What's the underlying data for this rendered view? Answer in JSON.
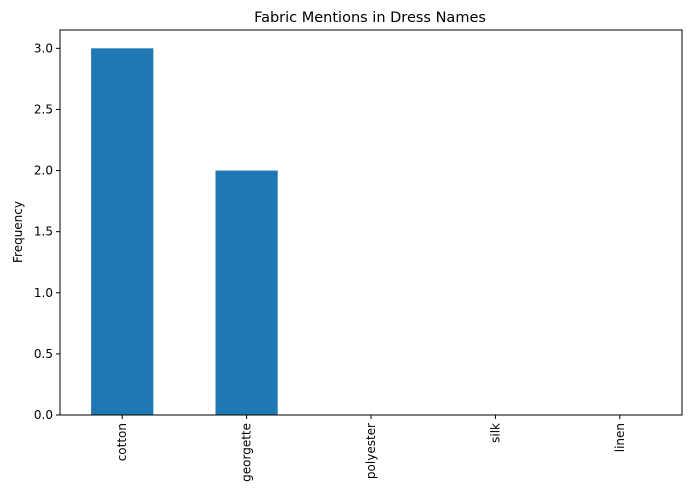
{
  "chart_data": {
    "type": "bar",
    "title": "Fabric Mentions in Dress Names",
    "xlabel": "",
    "ylabel": "Frequency",
    "categories": [
      "cotton",
      "georgette",
      "polyester",
      "silk",
      "linen"
    ],
    "values": [
      3,
      2,
      0,
      0,
      0
    ],
    "ylim": [
      0,
      3.15
    ],
    "yticks": [
      0,
      0.5,
      1,
      1.5,
      2,
      2.5,
      3
    ],
    "ytick_labels": [
      "0.0",
      "0.5",
      "1.0",
      "1.5",
      "2.0",
      "2.5",
      "3.0"
    ],
    "bar_color": "#1f77b4",
    "grid": false,
    "legend": "none"
  }
}
